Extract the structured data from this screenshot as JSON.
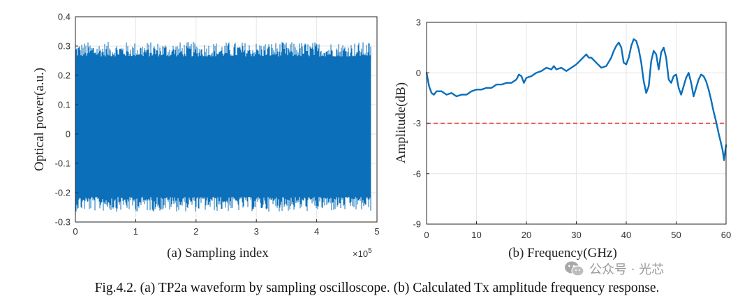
{
  "caption": "Fig.4.2. (a) TP2a waveform by sampling oscilloscope. (b) Calculated Tx amplitude frequency response.",
  "watermark": "公众号 · 光芯",
  "colors": {
    "series": "#0b6fba",
    "threshold": "#e02b2b",
    "grid": "#e6e6e6",
    "axis": "#262626"
  },
  "chart_data": [
    {
      "type": "area",
      "panel": "a",
      "title": "",
      "xlabel": "(a)  Sampling index",
      "ylabel": "Optical power(a.u.)",
      "x_exponent_label": "×10",
      "x_exponent_power": "5",
      "xlim": [
        0,
        5
      ],
      "ylim": [
        -0.3,
        0.4
      ],
      "xticks": [
        "0",
        "1",
        "2",
        "3",
        "4",
        "5"
      ],
      "yticks": [
        "-0.3",
        "-0.2",
        "-0.1",
        "0",
        "0.1",
        "0.2",
        "0.3",
        "0.4"
      ],
      "grid": true,
      "series": [
        {
          "x_range": [
            0,
            4.9
          ],
          "upper_envelope": 0.26,
          "upper_peak": 0.31,
          "lower_envelope": -0.21,
          "lower_peak": -0.26
        }
      ]
    },
    {
      "type": "line",
      "panel": "b",
      "title": "",
      "xlabel": "(b)  Frequency(GHz)",
      "ylabel": "Amplitude(dB)",
      "xlim": [
        0,
        60
      ],
      "ylim": [
        -9,
        3
      ],
      "xticks": [
        "0",
        "10",
        "20",
        "30",
        "40",
        "50",
        "60"
      ],
      "yticks": [
        "-9",
        "-6",
        "-3",
        "0",
        "3"
      ],
      "grid": true,
      "series": [
        {
          "x": [
            0,
            0.5,
            1,
            1.5,
            2,
            3,
            4,
            5,
            6,
            7,
            8,
            9,
            10,
            11,
            12,
            13,
            14,
            15,
            16,
            17,
            18,
            18.5,
            19,
            19.5,
            20,
            21,
            22,
            23,
            24,
            25,
            25.5,
            26,
            27,
            28,
            29,
            30,
            31,
            32,
            32.5,
            33,
            34,
            35,
            36,
            37,
            37.5,
            38,
            38.5,
            39,
            39.5,
            40,
            40.5,
            41,
            41.5,
            42,
            42.5,
            43,
            43.5,
            44,
            44.5,
            45,
            45.5,
            46,
            46.5,
            47,
            47.5,
            48,
            48.5,
            49,
            49.5,
            50,
            50.5,
            51,
            51.5,
            52,
            52.5,
            53,
            53.5,
            54,
            54.5,
            55,
            55.5,
            56,
            56.5,
            57,
            57.5,
            58,
            58.5,
            59,
            59.3,
            59.6,
            60
          ],
          "values": [
            0,
            -0.8,
            -1.2,
            -1.3,
            -1.1,
            -1.1,
            -1.3,
            -1.2,
            -1.4,
            -1.3,
            -1.3,
            -1.1,
            -1.0,
            -1.0,
            -0.9,
            -0.9,
            -0.7,
            -0.7,
            -0.6,
            -0.6,
            -0.4,
            -0.1,
            -0.2,
            -0.6,
            -0.3,
            -0.2,
            0.0,
            0.1,
            0.3,
            0.2,
            0.4,
            0.2,
            0.3,
            0.1,
            0.3,
            0.5,
            0.8,
            1.1,
            0.9,
            0.9,
            0.6,
            0.3,
            0.4,
            0.9,
            1.3,
            1.6,
            1.8,
            1.5,
            0.6,
            0.5,
            0.9,
            1.6,
            2.0,
            1.9,
            1.4,
            0.6,
            -0.5,
            -1.2,
            -0.8,
            0.7,
            1.3,
            1.1,
            0.2,
            1.2,
            1.5,
            0.9,
            -0.4,
            -0.6,
            -0.2,
            -0.1,
            -0.9,
            -1.3,
            -0.8,
            -0.3,
            0.0,
            -0.6,
            -1.4,
            -0.9,
            -0.4,
            -0.1,
            -0.2,
            -0.5,
            -1.0,
            -1.6,
            -2.3,
            -2.9,
            -3.6,
            -4.2,
            -4.6,
            -5.2,
            -4.3
          ]
        },
        {
          "name": "",
          "constant": -3,
          "style": "dashed",
          "x_range": [
            0,
            60
          ]
        }
      ]
    }
  ]
}
